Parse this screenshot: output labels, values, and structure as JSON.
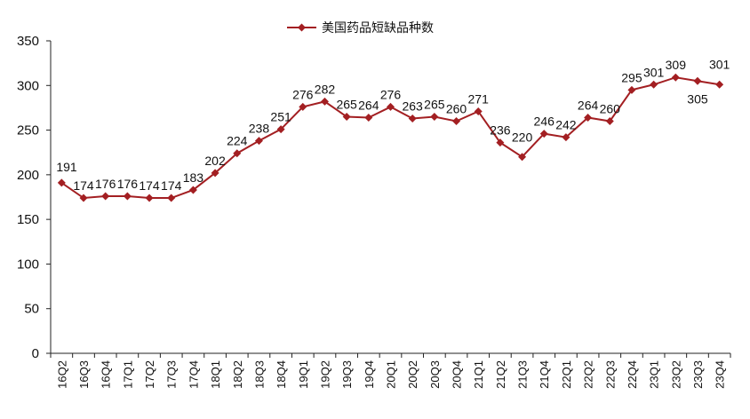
{
  "chart_data": {
    "type": "line",
    "legend": {
      "position": "top-center"
    },
    "series": [
      {
        "name": "美国药品短缺品种数",
        "color": "#a31f22",
        "marker": "diamond",
        "values": [
          191,
          174,
          176,
          176,
          174,
          174,
          183,
          202,
          224,
          238,
          251,
          276,
          282,
          265,
          264,
          276,
          263,
          265,
          260,
          271,
          236,
          220,
          246,
          242,
          264,
          260,
          295,
          301,
          309,
          305,
          301
        ]
      }
    ],
    "categories": [
      "16Q2",
      "16Q3",
      "16Q4",
      "17Q1",
      "17Q2",
      "17Q3",
      "17Q4",
      "18Q1",
      "18Q2",
      "18Q3",
      "18Q4",
      "19Q1",
      "19Q2",
      "19Q3",
      "19Q4",
      "20Q1",
      "20Q2",
      "20Q3",
      "20Q4",
      "21Q1",
      "21Q2",
      "21Q3",
      "21Q4",
      "22Q1",
      "22Q2",
      "22Q3",
      "22Q4",
      "23Q1",
      "23Q2",
      "23Q3",
      "23Q4"
    ],
    "ylim": [
      0,
      350
    ],
    "yticks": [
      0,
      50,
      100,
      150,
      200,
      250,
      300,
      350
    ],
    "grid": false
  }
}
